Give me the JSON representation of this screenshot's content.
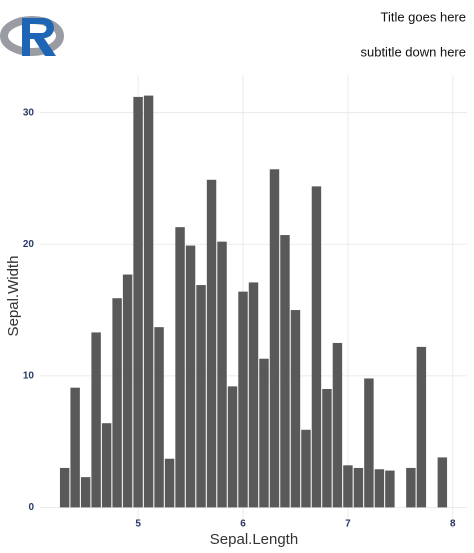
{
  "chart_data": {
    "type": "bar",
    "title": "Title goes here",
    "subtitle": "subtitle down here",
    "x_label": "Sepal.Length",
    "y_label": "Sepal.Width",
    "x": [
      4.3,
      4.4,
      4.5,
      4.6,
      4.7,
      4.8,
      4.9,
      5.0,
      5.1,
      5.2,
      5.3,
      5.4,
      5.5,
      5.6,
      5.7,
      5.8,
      5.9,
      6.0,
      6.1,
      6.2,
      6.3,
      6.4,
      6.5,
      6.6,
      6.7,
      6.8,
      6.9,
      7.0,
      7.1,
      7.2,
      7.3,
      7.4,
      7.6,
      7.7,
      7.9
    ],
    "values": [
      3.0,
      9.1,
      2.3,
      13.3,
      6.4,
      15.9,
      17.7,
      31.2,
      31.3,
      13.7,
      3.7,
      21.3,
      19.9,
      16.9,
      24.9,
      20.2,
      9.2,
      16.4,
      17.1,
      11.3,
      25.7,
      20.7,
      15.0,
      5.9,
      24.4,
      9.0,
      12.5,
      3.2,
      3.0,
      9.8,
      2.9,
      2.8,
      3.0,
      12.2,
      3.8
    ],
    "color": "#595959",
    "xlim": [
      4.065,
      8.135
    ],
    "xticks": [
      5,
      6,
      7,
      8
    ],
    "ylim": [
      -1.565,
      32.865
    ],
    "yticks": [
      0,
      10,
      20,
      30
    ],
    "grid": true
  }
}
